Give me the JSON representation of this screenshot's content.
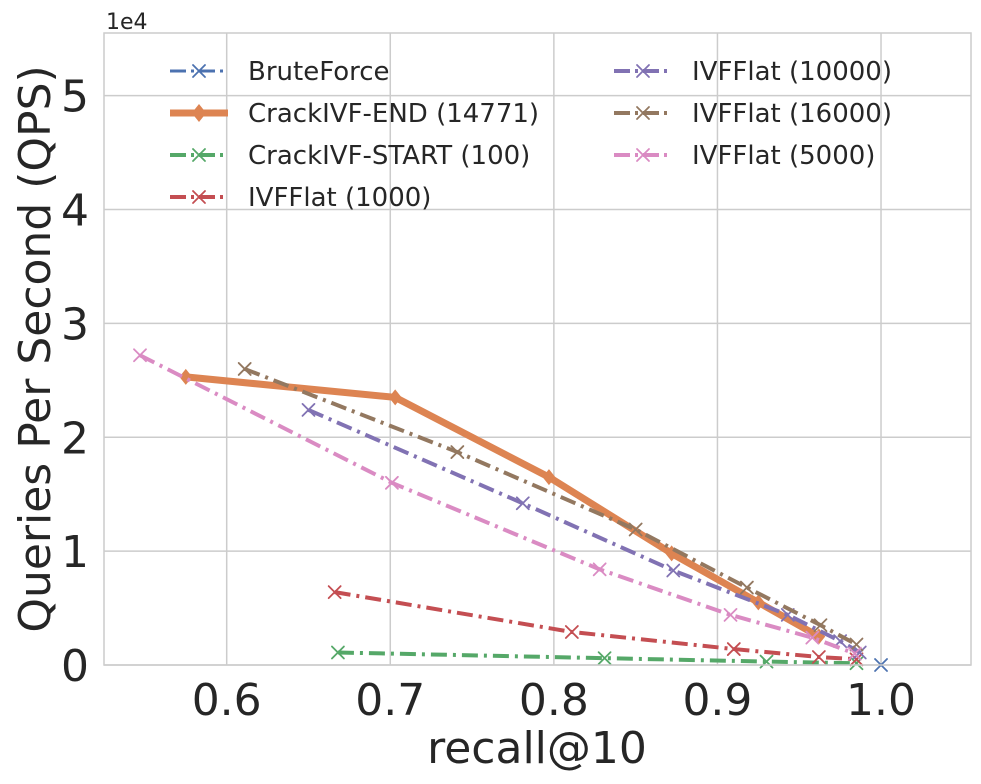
{
  "chart_data": {
    "type": "line",
    "title": "",
    "xlabel": "recall@10",
    "ylabel": "Queries Per Second (QPS)",
    "offset_label": "1e4",
    "xlim": [
      0.525,
      1.055
    ],
    "ylim": [
      0,
      55500
    ],
    "x_ticks": [
      0.6,
      0.7,
      0.8,
      0.9,
      1.0
    ],
    "x_tick_labels": [
      "0.6",
      "0.7",
      "0.8",
      "0.9",
      "1.0"
    ],
    "y_ticks": [
      0,
      10000,
      20000,
      30000,
      40000,
      50000
    ],
    "y_tick_labels": [
      "0",
      "1",
      "2",
      "3",
      "4",
      "5"
    ],
    "grid": true,
    "legend_position": "top",
    "series": [
      {
        "name": "BruteForce",
        "color": "#4c72b0",
        "marker": "x",
        "style": "dashdot",
        "width": 3,
        "x": [
          1.0
        ],
        "y": [
          0
        ]
      },
      {
        "name": "CrackIVF-END (14771)",
        "color": "#dd8452",
        "marker": "diamond",
        "style": "solid",
        "width": 7,
        "x": [
          0.575,
          0.703,
          0.797,
          0.872,
          0.925,
          0.962
        ],
        "y": [
          25300,
          23500,
          16500,
          9800,
          5500,
          2500
        ]
      },
      {
        "name": "CrackIVF-START (100)",
        "color": "#55a868",
        "marker": "x",
        "style": "dashdot",
        "width": 4,
        "x": [
          0.668,
          0.831,
          0.93,
          0.985
        ],
        "y": [
          1100,
          600,
          300,
          150
        ]
      },
      {
        "name": "IVFFlat (1000)",
        "color": "#c44e52",
        "marker": "x",
        "style": "dashdot",
        "width": 4,
        "x": [
          0.666,
          0.811,
          0.91,
          0.962,
          0.985
        ],
        "y": [
          6400,
          2900,
          1400,
          700,
          500
        ]
      },
      {
        "name": "IVFFlat (10000)",
        "color": "#8172b3",
        "marker": "x",
        "style": "dashdot",
        "width": 4,
        "x": [
          0.65,
          0.781,
          0.873,
          0.943,
          0.975,
          0.987
        ],
        "y": [
          22400,
          14200,
          8300,
          4400,
          2100,
          1100
        ]
      },
      {
        "name": "IVFFlat (16000)",
        "color": "#937860",
        "marker": "x",
        "style": "dashdot",
        "width": 4,
        "x": [
          0.611,
          0.741,
          0.85,
          0.918,
          0.963,
          0.985
        ],
        "y": [
          26000,
          18700,
          11900,
          6800,
          3500,
          1800
        ]
      },
      {
        "name": "IVFFlat (5000)",
        "color": "#da8bc3",
        "marker": "x",
        "style": "dashdot",
        "width": 4,
        "x": [
          0.547,
          0.701,
          0.828,
          0.908,
          0.958,
          0.984
        ],
        "y": [
          27200,
          16000,
          8400,
          4400,
          2400,
          1000
        ]
      }
    ]
  }
}
